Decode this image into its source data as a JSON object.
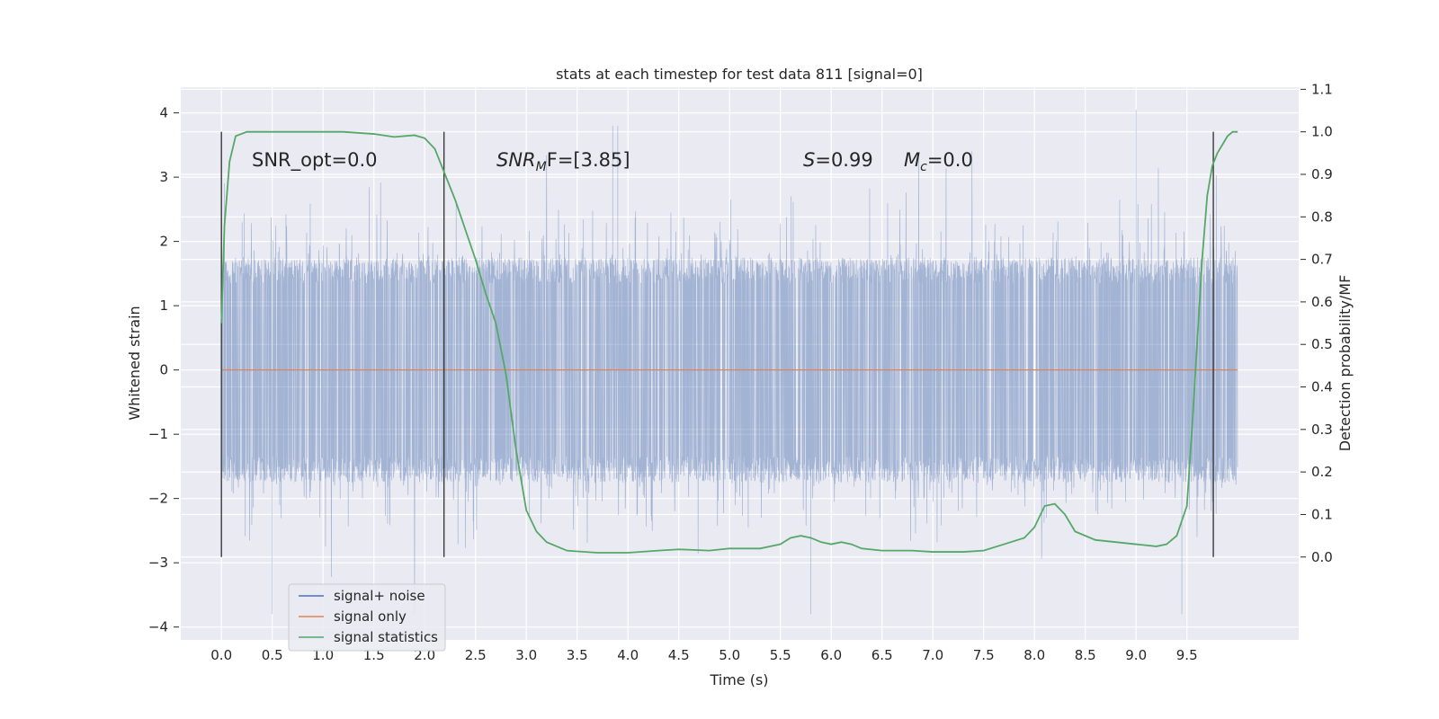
{
  "chart_data": {
    "type": "line",
    "title": "stats at each timestep for test data 811 [signal=0]",
    "xlabel": "Time (s)",
    "ylabel": "Whitened strain",
    "y2label": "Detection probability/MF",
    "xlim": [
      -0.4,
      10.6
    ],
    "ylim": [
      -4.2,
      4.4
    ],
    "y2lim": [
      -0.195,
      1.105
    ],
    "x_ticks": [
      "0.0",
      "0.5",
      "1.0",
      "1.5",
      "2.0",
      "2.5",
      "3.0",
      "3.5",
      "4.0",
      "4.5",
      "5.0",
      "5.5",
      "6.0",
      "6.5",
      "7.0",
      "7.5",
      "8.0",
      "8.5",
      "9.0",
      "9.5"
    ],
    "y_ticks": [
      "−4",
      "−3",
      "−2",
      "−1",
      "0",
      "1",
      "2",
      "3",
      "4"
    ],
    "y2_ticks": [
      "0.0",
      "0.1",
      "0.2",
      "0.3",
      "0.4",
      "0.5",
      "0.6",
      "0.7",
      "0.8",
      "0.9",
      "1.0",
      "1.1"
    ],
    "grid": true,
    "legend_position": "lower-left",
    "annotations": {
      "snr_opt": "SNR_opt=0.0",
      "snr_mf_prefix": "SNR",
      "snr_mf_sub": "M",
      "snr_mf_suffix": "F=[3.85]",
      "s_var": "S",
      "s_value": "=0.99",
      "mc_var": "M",
      "mc_sub": "c",
      "mc_value": "=0.0"
    },
    "vertical_markers": [
      0.0,
      2.19,
      9.76
    ],
    "series": [
      {
        "name": "signal+ noise",
        "axis": "left",
        "color": "#4c72b0",
        "x_range": [
          0.0,
          10.0
        ],
        "envelope": "noise band approximately ±1.7, spikes reaching about ±3.8 (max ≈ 4.05 near t=9.0, min ≈ −3.8 near t=0.5, 5.8 and 9.45)"
      },
      {
        "name": "signal only",
        "axis": "left",
        "color": "#dd8452",
        "x": [
          0.0,
          10.0
        ],
        "y": [
          0.0,
          0.0
        ]
      },
      {
        "name": "signal statistics",
        "axis": "right",
        "color": "#55a868",
        "x": [
          0.0,
          0.03,
          0.08,
          0.14,
          0.25,
          0.5,
          0.8,
          1.2,
          1.5,
          1.7,
          1.9,
          2.0,
          2.1,
          2.2,
          2.3,
          2.4,
          2.5,
          2.6,
          2.7,
          2.8,
          2.9,
          3.0,
          3.1,
          3.2,
          3.4,
          3.7,
          4.0,
          4.3,
          4.5,
          4.8,
          5.0,
          5.3,
          5.5,
          5.6,
          5.7,
          5.8,
          5.9,
          6.0,
          6.1,
          6.2,
          6.3,
          6.5,
          6.8,
          7.0,
          7.3,
          7.5,
          7.7,
          7.9,
          8.0,
          8.1,
          8.2,
          8.3,
          8.4,
          8.6,
          8.8,
          9.0,
          9.2,
          9.3,
          9.4,
          9.5,
          9.55,
          9.6,
          9.65,
          9.7,
          9.75,
          9.8,
          9.85,
          9.9,
          9.95,
          10.0
        ],
        "y": [
          0.55,
          0.78,
          0.93,
          0.99,
          1.0,
          1.0,
          1.0,
          1.0,
          0.995,
          0.988,
          0.992,
          0.985,
          0.96,
          0.9,
          0.84,
          0.77,
          0.7,
          0.62,
          0.55,
          0.43,
          0.25,
          0.11,
          0.06,
          0.035,
          0.015,
          0.01,
          0.01,
          0.015,
          0.018,
          0.015,
          0.02,
          0.02,
          0.03,
          0.045,
          0.05,
          0.045,
          0.035,
          0.03,
          0.035,
          0.03,
          0.02,
          0.015,
          0.015,
          0.012,
          0.012,
          0.015,
          0.03,
          0.045,
          0.07,
          0.12,
          0.125,
          0.1,
          0.06,
          0.04,
          0.035,
          0.03,
          0.025,
          0.03,
          0.05,
          0.12,
          0.3,
          0.5,
          0.7,
          0.85,
          0.92,
          0.95,
          0.97,
          0.99,
          1.0,
          1.0
        ]
      }
    ]
  }
}
